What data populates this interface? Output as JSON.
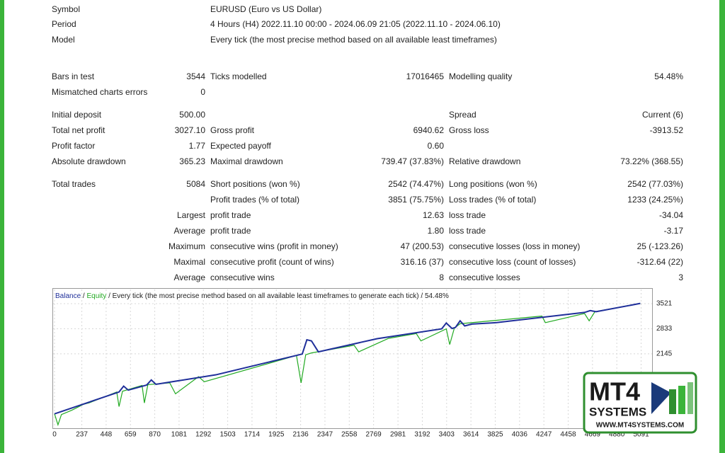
{
  "header": [
    {
      "label": "Symbol",
      "value": "EURUSD (Euro vs US Dollar)"
    },
    {
      "label": "Period",
      "value": "4 Hours (H4) 2022.11.10 00:00 - 2024.06.09 21:05 (2022.11.10 - 2024.06.10)"
    },
    {
      "label": "Model",
      "value": "Every tick (the most precise method based on all available least timeframes)"
    }
  ],
  "stats": [
    [
      "Bars in test",
      "3544",
      "Ticks modelled",
      "17016465",
      "Modelling quality",
      "54.48%"
    ],
    [
      "Mismatched charts errors",
      "0",
      null,
      null,
      null,
      null
    ],
    [
      "Initial deposit",
      "500.00",
      null,
      null,
      "Spread",
      "Current (6)"
    ],
    [
      "Total net profit",
      "3027.10",
      "Gross profit",
      "6940.62",
      "Gross loss",
      "-3913.52"
    ],
    [
      "Profit factor",
      "1.77",
      "Expected payoff",
      "0.60",
      null,
      null
    ],
    [
      "Absolute drawdown",
      "365.23",
      "Maximal drawdown",
      "739.47 (37.83%)",
      "Relative drawdown",
      "73.22% (368.55)"
    ],
    [
      "Total trades",
      "5084",
      "Short positions (won %)",
      "2542 (74.47%)",
      "Long positions (won %)",
      "2542 (77.03%)"
    ],
    [
      null,
      null,
      "Profit trades (% of total)",
      "3851 (75.75%)",
      "Loss trades (% of total)",
      "1233 (24.25%)"
    ],
    [
      null,
      "Largest",
      "profit trade",
      "12.63",
      "loss trade",
      "-34.04"
    ],
    [
      null,
      "Average",
      "profit trade",
      "1.80",
      "loss trade",
      "-3.17"
    ],
    [
      null,
      "Maximum",
      "consecutive wins (profit in money)",
      "47 (200.53)",
      "consecutive losses (loss in money)",
      "25 (-123.26)"
    ],
    [
      null,
      "Maximal",
      "consecutive profit (count of wins)",
      "316.16 (37)",
      "consecutive loss (count of losses)",
      "-312.64 (22)"
    ],
    [
      null,
      "Average",
      "consecutive wins",
      "8",
      "consecutive losses",
      "3"
    ]
  ],
  "chart_data": {
    "type": "line",
    "legend_separator": "/",
    "subtitle": "/ Every tick (the most precise method based on all available least timeframes to generate each tick) / 54.48%",
    "xlim": [
      0,
      5180
    ],
    "ylim": [
      145,
      3928
    ],
    "xticks": [
      0,
      237,
      448,
      659,
      870,
      1081,
      1292,
      1503,
      1714,
      1925,
      2136,
      2347,
      2558,
      2769,
      2981,
      3192,
      3403,
      3614,
      3825,
      4036,
      4247,
      4458,
      4669,
      4880,
      5091
    ],
    "yticks": [
      2145,
      2833,
      3521
    ],
    "grid": true,
    "series": [
      {
        "name": "Equity",
        "color": "#22aa22",
        "x": [
          0,
          30,
          60,
          150,
          250,
          300,
          540,
          560,
          590,
          760,
          780,
          810,
          1000,
          1050,
          1250,
          1300,
          2100,
          2140,
          2180,
          2230,
          2600,
          2640,
          2900,
          3140,
          3180,
          3400,
          3430,
          3470,
          3520,
          4230,
          4260,
          4600,
          4640,
          4690,
          5084
        ],
        "values": [
          500,
          200,
          480,
          600,
          760,
          800,
          1100,
          700,
          1120,
          1280,
          800,
          1300,
          1350,
          1050,
          1520,
          1380,
          2100,
          1350,
          2120,
          2170,
          2380,
          2200,
          2570,
          2700,
          2500,
          2830,
          2400,
          2850,
          2970,
          3180,
          3000,
          3250,
          3050,
          3300,
          3527
        ]
      },
      {
        "name": "Balance",
        "color": "#1f2f9a",
        "x": [
          0,
          560,
          600,
          640,
          800,
          840,
          880,
          1400,
          2150,
          2190,
          2230,
          2290,
          2800,
          3360,
          3400,
          3450,
          3480,
          3520,
          3560,
          3620,
          3830,
          4600,
          4650,
          4700,
          5084
        ],
        "values": [
          500,
          1100,
          1260,
          1150,
          1290,
          1430,
          1310,
          1570,
          2140,
          2530,
          2500,
          2200,
          2560,
          2830,
          2990,
          2840,
          2870,
          3050,
          2910,
          2960,
          3000,
          3280,
          3330,
          3300,
          3527
        ]
      }
    ]
  },
  "logo": {
    "brand": "MT4",
    "line2": "SYSTEMS",
    "url": "WWW.MT4SYSTEMS.COM"
  }
}
